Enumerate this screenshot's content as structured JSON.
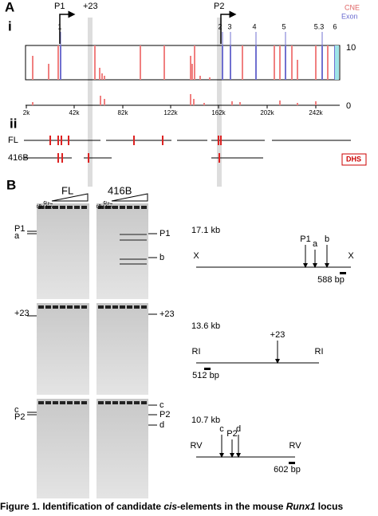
{
  "panel_a": {
    "label": "A",
    "legend": [
      "CNE",
      "Exon"
    ],
    "sub_i": "i",
    "sub_ii": "ii",
    "promoters": [
      "P1",
      "+23",
      "P2"
    ],
    "exons": [
      "1",
      "2",
      "3",
      "4",
      "5",
      "5.3",
      "6"
    ],
    "y_axis": [
      "10",
      "0"
    ],
    "x_axis": [
      "2k",
      "42k",
      "82k",
      "122k",
      "162k",
      "202k",
      "242k"
    ],
    "tracks": [
      "FL",
      "416B"
    ],
    "dhs": "DHS"
  },
  "panel_b": {
    "label": "B",
    "columns": [
      "FL",
      "416B"
    ],
    "lanes": [
      "G",
      "ice",
      "37"
    ],
    "gel_left": [
      [
        "P1",
        "a"
      ],
      [
        "+23"
      ],
      [
        "c",
        "P2"
      ]
    ],
    "gel_right": [
      [
        "P1",
        "b"
      ],
      [
        "+23"
      ],
      [
        "c",
        "P2",
        "d"
      ]
    ],
    "maps": [
      {
        "size": "17.1 kb",
        "ends": [
          "X",
          "X"
        ],
        "sites": [
          "P1",
          "a",
          "b"
        ],
        "probe": "588 bp"
      },
      {
        "size": "13.6 kb",
        "ends": [
          "RI",
          "RI"
        ],
        "sites": [
          "+23"
        ],
        "probe": "512 bp"
      },
      {
        "size": "10.7 kb",
        "ends": [
          "RV",
          "RV"
        ],
        "sites": [
          "c",
          "P2",
          "d"
        ],
        "probe": "602 bp"
      }
    ]
  },
  "caption": [
    "Figure 1. Identification of candidate ",
    "cis",
    "-elements in the mouse ",
    "Runx1",
    " locus"
  ]
}
